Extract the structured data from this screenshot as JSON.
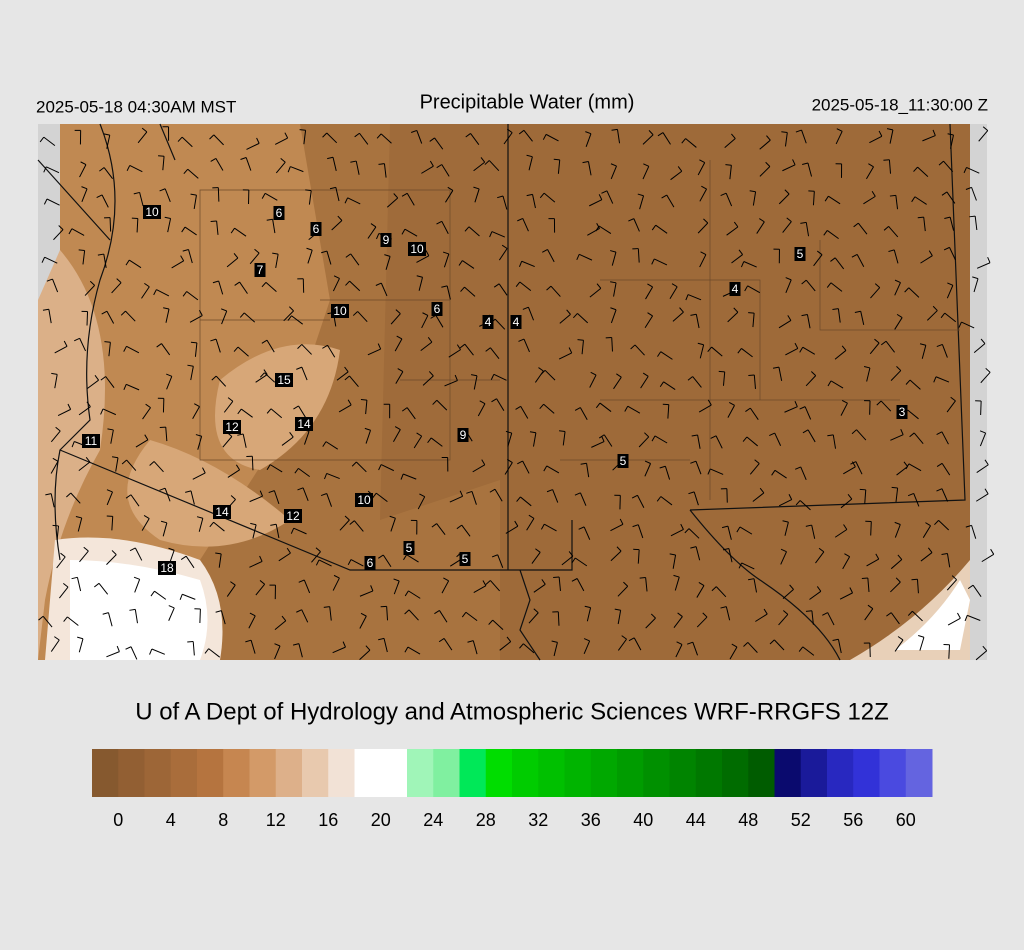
{
  "header": {
    "local_time": "2025-05-18 04:30AM MST",
    "title": "Precipitable Water (mm)",
    "valid_time": "2025-05-18_11:30:00 Z"
  },
  "stations": [
    10,
    6,
    6,
    9,
    10,
    7,
    10,
    6,
    4,
    4,
    5,
    4,
    15,
    14,
    12,
    11,
    9,
    5,
    3,
    10,
    14,
    12,
    6,
    5,
    5,
    18
  ],
  "footer": "U of A Dept of Hydrology and Atmospheric Sciences WRF-RRGFS 12Z",
  "colorbar": {
    "clim": [
      -2,
      62
    ],
    "ticks": [
      0,
      4,
      8,
      12,
      16,
      20,
      24,
      28,
      32,
      36,
      40,
      44,
      48,
      52,
      56,
      60
    ],
    "colors": [
      "#86592f",
      "#925f33",
      "#9d6637",
      "#a96d3b",
      "#b5743f",
      "#c68650",
      "#d39a68",
      "#ddb08a",
      "#e8c9ae",
      "#f2e2d6",
      "#ffffff",
      "#ffffff",
      "#a0f5b8",
      "#80f0a0",
      "#00e858",
      "#00dd00",
      "#00cc00",
      "#00c000",
      "#00b400",
      "#00a800",
      "#009c00",
      "#009000",
      "#008400",
      "#007800",
      "#006c00",
      "#005c00",
      "#0a0a6e",
      "#1a1a9a",
      "#2828c0",
      "#3232d8",
      "#4a4ae0",
      "#6464e0"
    ]
  }
}
